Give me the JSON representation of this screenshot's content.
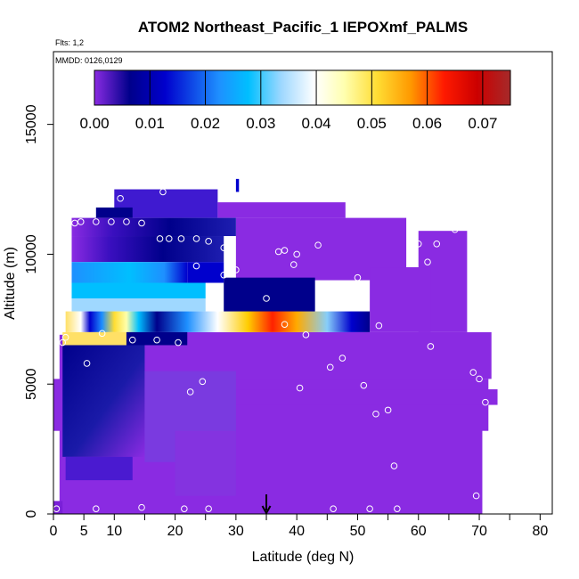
{
  "chart_data": {
    "type": "heatmap",
    "title": "ATOM2 Northeast_Pacific_1 IEPOXmf_PALMS",
    "flights_label": "Flts: 1,2",
    "date_label": "MMDD: 0126,0129",
    "xlabel": "Latitude (deg N)",
    "ylabel": "Altitude (m)",
    "xlim": [
      0,
      82
    ],
    "ylim": [
      0,
      17800
    ],
    "x_ticks": [
      0,
      5,
      10,
      20,
      30,
      40,
      50,
      60,
      70,
      80
    ],
    "x_ticks_unlabeled": [
      15,
      25,
      35,
      45,
      55,
      65,
      75
    ],
    "y_ticks": [
      0,
      5000,
      10000,
      15000
    ],
    "colorbar": {
      "label_values": [
        0.0,
        0.01,
        0.02,
        0.03,
        0.04,
        0.05,
        0.06,
        0.07
      ],
      "range": [
        0,
        0.075
      ],
      "colors": [
        "#8a2be2",
        "#00008b",
        "#0000cd",
        "#1e90ff",
        "#00bfff",
        "#87cefa",
        "#ffffff",
        "#ffffe0",
        "#ffff66",
        "#ffcc00",
        "#ff8c00",
        "#ff0000",
        "#cc0000",
        "#a52a2a"
      ]
    },
    "arrow_latitude": 35,
    "observations": [
      {
        "lat": 0.5,
        "alt": 200
      },
      {
        "lat": 7,
        "alt": 200
      },
      {
        "lat": 14.5,
        "alt": 250
      },
      {
        "lat": 21.5,
        "alt": 200
      },
      {
        "lat": 25.5,
        "alt": 200
      },
      {
        "lat": 46,
        "alt": 200
      },
      {
        "lat": 52,
        "alt": 200
      },
      {
        "lat": 56.5,
        "alt": 200
      },
      {
        "lat": 69.5,
        "alt": 700
      },
      {
        "lat": 56,
        "alt": 1850
      },
      {
        "lat": 53,
        "alt": 3850
      },
      {
        "lat": 55,
        "alt": 4000
      },
      {
        "lat": 71,
        "alt": 4300
      },
      {
        "lat": 51,
        "alt": 4950
      },
      {
        "lat": 40.5,
        "alt": 4850
      },
      {
        "lat": 22.5,
        "alt": 4700
      },
      {
        "lat": 24.5,
        "alt": 5100
      },
      {
        "lat": 70,
        "alt": 5200
      },
      {
        "lat": 69,
        "alt": 5450
      },
      {
        "lat": 45.5,
        "alt": 5650
      },
      {
        "lat": 47.5,
        "alt": 6000
      },
      {
        "lat": 5.5,
        "alt": 5800
      },
      {
        "lat": 1.5,
        "alt": 6600
      },
      {
        "lat": 2,
        "alt": 6800
      },
      {
        "lat": 13,
        "alt": 6700
      },
      {
        "lat": 17,
        "alt": 6700
      },
      {
        "lat": 20.5,
        "alt": 6600
      },
      {
        "lat": 8,
        "alt": 6950
      },
      {
        "lat": 41.5,
        "alt": 6900
      },
      {
        "lat": 62,
        "alt": 6450
      },
      {
        "lat": 53.5,
        "alt": 7250
      },
      {
        "lat": 38,
        "alt": 7300
      },
      {
        "lat": 27,
        "alt": 7900
      },
      {
        "lat": 35,
        "alt": 8300
      },
      {
        "lat": 28,
        "alt": 9200
      },
      {
        "lat": 30,
        "alt": 9400
      },
      {
        "lat": 39.5,
        "alt": 9600
      },
      {
        "lat": 50,
        "alt": 9100
      },
      {
        "lat": 23.5,
        "alt": 9550
      },
      {
        "lat": 61.5,
        "alt": 9700
      },
      {
        "lat": 37,
        "alt": 10100
      },
      {
        "lat": 38,
        "alt": 10150
      },
      {
        "lat": 40,
        "alt": 10000
      },
      {
        "lat": 28,
        "alt": 10250
      },
      {
        "lat": 43.5,
        "alt": 10350
      },
      {
        "lat": 60,
        "alt": 10400
      },
      {
        "lat": 63,
        "alt": 10400
      },
      {
        "lat": 19,
        "alt": 10600
      },
      {
        "lat": 21,
        "alt": 10600
      },
      {
        "lat": 23.5,
        "alt": 10600
      },
      {
        "lat": 25.5,
        "alt": 10500
      },
      {
        "lat": 17.5,
        "alt": 10600
      },
      {
        "lat": 66,
        "alt": 10950
      },
      {
        "lat": 4.5,
        "alt": 11250
      },
      {
        "lat": 7,
        "alt": 11250
      },
      {
        "lat": 9.5,
        "alt": 11250
      },
      {
        "lat": 12,
        "alt": 11250
      },
      {
        "lat": 14.5,
        "alt": 11200
      },
      {
        "lat": 11,
        "alt": 12150
      },
      {
        "lat": 18,
        "alt": 12400
      },
      {
        "lat": 3.5,
        "alt": 11200
      }
    ]
  }
}
